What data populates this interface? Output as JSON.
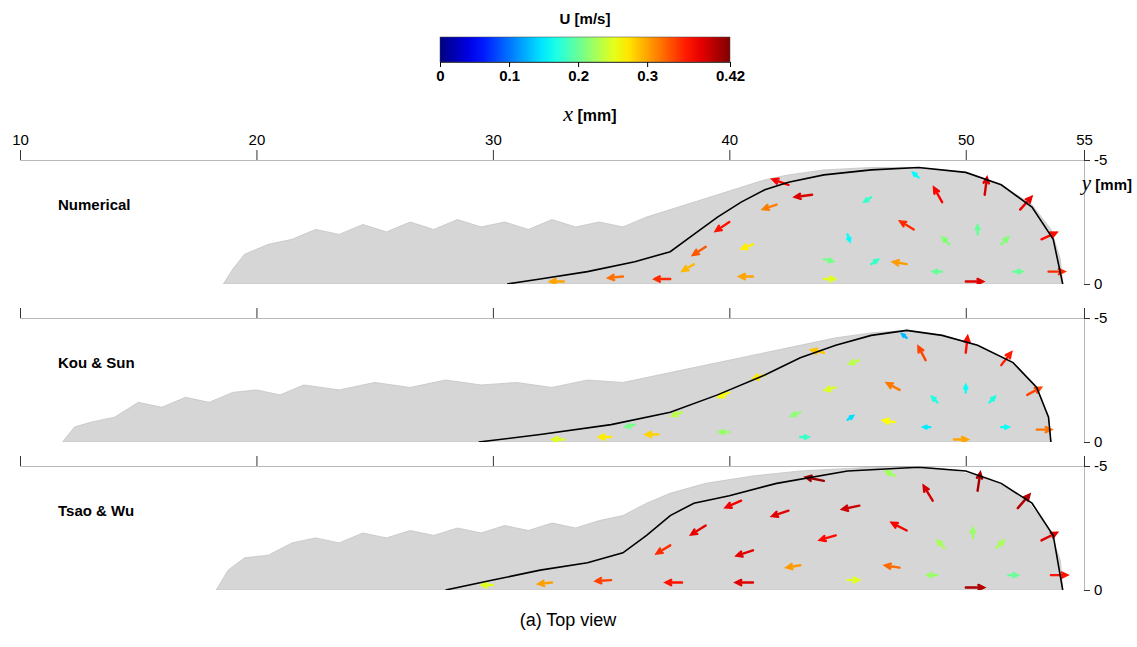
{
  "chart_data": [
    {
      "type": "vector_field",
      "title": "Numerical",
      "x_label": "x [mm]",
      "y_label": "y [mm]",
      "xlim": [
        10,
        55
      ],
      "xticks": [
        10,
        20,
        30,
        40,
        50,
        55
      ],
      "ylim": [
        -5,
        0
      ],
      "yticks": [
        -5,
        0
      ],
      "colorbar": {
        "title": "U [m/s]",
        "range": [
          0,
          0.42
        ],
        "ticks": [
          0,
          0.1,
          0.2,
          0.3,
          0.42
        ]
      },
      "bead": {
        "x": [
          18.6,
          19,
          19.5,
          20.5,
          21.5,
          22.5,
          23.5,
          24.5,
          25.5,
          26.5,
          27.5,
          28.5,
          29.5,
          30.5,
          31.5,
          32.5,
          33.5,
          34.5,
          35.5,
          36.5,
          37.5,
          38.5,
          39.5,
          40.5,
          41.5,
          42.5,
          44,
          46,
          48,
          50,
          51.5,
          52.8,
          53.6,
          54,
          54.1
        ],
        "y": [
          0,
          -0.6,
          -1.2,
          -1.6,
          -1.8,
          -2.2,
          -2.0,
          -2.4,
          -2.1,
          -2.5,
          -2.2,
          -2.6,
          -2.3,
          -2.5,
          -2.2,
          -2.6,
          -2.3,
          -2.5,
          -2.3,
          -2.7,
          -3.0,
          -3.3,
          -3.6,
          -3.9,
          -4.2,
          -4.4,
          -4.6,
          -4.7,
          -4.7,
          -4.5,
          -4.0,
          -3.2,
          -2.2,
          -1.0,
          0
        ]
      },
      "boundary": {
        "x": [
          30.6,
          32,
          34,
          36,
          37.5,
          38.5,
          39.5,
          40.5,
          41.5,
          42.5,
          44,
          46,
          48,
          50,
          51.5,
          52.8,
          53.7,
          54.1
        ],
        "y": [
          0,
          -0.2,
          -0.5,
          -0.9,
          -1.3,
          -2.0,
          -2.7,
          -3.3,
          -3.8,
          -4.1,
          -4.4,
          -4.6,
          -4.7,
          -4.5,
          -4.0,
          -3.1,
          -1.8,
          0
        ]
      },
      "vectors": {
        "x": [
          53.5,
          53.2,
          52.3,
          50.8,
          49,
          47.8,
          47.5,
          52,
          51.5,
          50.5,
          49.3,
          49,
          50,
          48,
          46,
          45,
          44,
          46,
          42.5,
          43.5,
          42,
          40,
          39,
          41,
          38.5,
          33,
          35.5,
          37.5,
          41,
          44
        ],
        "y": [
          -0.5,
          -1.8,
          -3.0,
          -3.6,
          -3.3,
          -2.2,
          -0.8,
          -0.5,
          -1.6,
          -2.0,
          -1.6,
          -0.5,
          -0.1,
          -4.3,
          -3.5,
          -2,
          -1,
          -0.8,
          -4.0,
          -3.6,
          -3.2,
          -2.5,
          -1.5,
          -1.6,
          -0.8,
          -0.1,
          -0.3,
          -0.2,
          -0.3,
          -0.2
        ],
        "u": [
          0.35,
          0.33,
          0.25,
          0.05,
          -0.18,
          -0.3,
          -0.3,
          0.2,
          0.15,
          0,
          -0.15,
          -0.2,
          0.38,
          -0.12,
          -0.15,
          0.05,
          0.2,
          0.15,
          -0.35,
          -0.38,
          -0.3,
          -0.3,
          -0.28,
          -0.25,
          -0.25,
          -0.3,
          -0.32,
          -0.35,
          -0.3,
          0.25
        ],
        "v": [
          0,
          -0.15,
          -0.28,
          -0.38,
          -0.32,
          -0.18,
          -0.05,
          0,
          -0.15,
          -0.2,
          -0.15,
          0,
          0,
          -0.1,
          0.1,
          0.15,
          0.05,
          -0.1,
          -0.12,
          0.05,
          0.1,
          0.2,
          0.18,
          0.1,
          0.15,
          0,
          0.03,
          0,
          0,
          0
        ]
      }
    },
    {
      "type": "vector_field",
      "title": "Kou & Sun",
      "tick_labels": "y",
      "xlim": [
        10,
        55
      ],
      "xticks": [
        10,
        20,
        30,
        40,
        50,
        55
      ],
      "ylim": [
        -5,
        0
      ],
      "yticks": [
        -5,
        0
      ],
      "bead": {
        "x": [
          11.8,
          12.3,
          13,
          14,
          15,
          16,
          17,
          18,
          19,
          20,
          21,
          22,
          23.5,
          25,
          26.5,
          28,
          29.5,
          31,
          32.5,
          34,
          35.5,
          37,
          38.5,
          40,
          41.5,
          43,
          44.5,
          46,
          47.5,
          49,
          50.5,
          52,
          53,
          53.5,
          53.6
        ],
        "y": [
          0,
          -0.6,
          -0.8,
          -1.0,
          -1.6,
          -1.4,
          -1.8,
          -1.6,
          -2.0,
          -2.1,
          -1.9,
          -2.3,
          -2.1,
          -2.4,
          -2.2,
          -2.5,
          -2.3,
          -2.4,
          -2.2,
          -2.5,
          -2.4,
          -2.7,
          -3.0,
          -3.3,
          -3.6,
          -3.9,
          -4.2,
          -4.4,
          -4.5,
          -4.3,
          -3.9,
          -3.2,
          -2.2,
          -1.0,
          0
        ]
      },
      "boundary": {
        "x": [
          29.4,
          32,
          35,
          37.5,
          39.5,
          41.5,
          43,
          44.5,
          46,
          47.5,
          49,
          50.5,
          52,
          53,
          53.5,
          53.6
        ],
        "y": [
          0,
          -0.3,
          -0.7,
          -1.2,
          -1.9,
          -2.7,
          -3.4,
          -3.9,
          -4.3,
          -4.5,
          -4.3,
          -3.9,
          -3.2,
          -2.2,
          -1.0,
          0
        ]
      },
      "vectors": {
        "x": [
          53,
          52.6,
          51.5,
          50,
          48.3,
          47.2,
          47,
          51.5,
          51,
          50,
          48.8,
          48.5,
          49.5,
          47.5,
          45.5,
          44.5,
          43,
          45,
          44,
          41.5,
          40,
          38,
          36,
          33,
          35,
          37,
          40,
          43
        ],
        "y": [
          -0.5,
          -1.9,
          -3.1,
          -3.6,
          -3.3,
          -2.1,
          -0.8,
          -0.6,
          -1.6,
          -2.0,
          -1.6,
          -0.6,
          -0.1,
          -4.2,
          -3.3,
          -2.2,
          -1.2,
          -0.9,
          -3.6,
          -2.7,
          -2.0,
          -1.2,
          -0.7,
          -0.1,
          -0.2,
          -0.3,
          -0.4,
          -0.2
        ],
        "u": [
          0.32,
          0.3,
          0.22,
          0.04,
          -0.16,
          -0.28,
          -0.26,
          0.16,
          0.12,
          0,
          -0.12,
          -0.15,
          0.3,
          -0.1,
          -0.22,
          -0.24,
          -0.2,
          0.12,
          -0.28,
          -0.26,
          -0.24,
          -0.22,
          -0.2,
          -0.25,
          -0.27,
          -0.28,
          -0.22,
          0.18
        ],
        "v": [
          0,
          -0.16,
          -0.28,
          -0.36,
          -0.3,
          -0.15,
          -0.04,
          0,
          -0.12,
          -0.16,
          -0.12,
          0,
          0,
          -0.08,
          0.08,
          0.06,
          0.08,
          -0.08,
          -0.06,
          0.08,
          0.1,
          0.08,
          0.05,
          0,
          0,
          0,
          0,
          0
        ]
      }
    },
    {
      "type": "vector_field",
      "title": "Tsao & Wu",
      "tick_labels": "y",
      "xlim": [
        10,
        55
      ],
      "xticks": [
        10,
        20,
        30,
        40,
        50,
        55
      ],
      "ylim": [
        -5,
        0
      ],
      "yticks": [
        -5,
        0
      ],
      "bead": {
        "x": [
          18.3,
          18.8,
          19.5,
          20.5,
          21.5,
          22.5,
          23.5,
          24.5,
          25.5,
          26.5,
          27.5,
          28.5,
          29.5,
          30.5,
          31.5,
          32.5,
          33.5,
          34.5,
          35.5,
          36.5,
          37.5,
          39,
          41,
          43,
          45,
          47,
          49,
          51,
          52.5,
          53.5,
          54,
          54.1
        ],
        "y": [
          0,
          -0.8,
          -1.3,
          -1.4,
          -1.9,
          -2.1,
          -1.9,
          -2.3,
          -2.1,
          -2.4,
          -2.2,
          -2.5,
          -2.3,
          -2.6,
          -2.4,
          -2.7,
          -2.5,
          -2.8,
          -3.0,
          -3.5,
          -3.9,
          -4.3,
          -4.6,
          -4.8,
          -4.9,
          -5.0,
          -4.9,
          -4.5,
          -3.7,
          -2.5,
          -1.2,
          0
        ]
      },
      "boundary": {
        "x": [
          28,
          30,
          32,
          34,
          35.5,
          36.5,
          37.5,
          38.5,
          40,
          42,
          45,
          48,
          50,
          51.5,
          52.8,
          53.7,
          54.1
        ],
        "y": [
          0,
          -0.4,
          -0.8,
          -1.1,
          -1.5,
          -2.2,
          -3.0,
          -3.5,
          -3.8,
          -4.3,
          -4.8,
          -4.95,
          -4.8,
          -4.3,
          -3.5,
          -2.2,
          0
        ]
      },
      "vectors": {
        "x": [
          53.6,
          53.2,
          52.2,
          50.5,
          48.6,
          47.5,
          47.2,
          51.8,
          51.3,
          50.3,
          49.1,
          48.8,
          50,
          47,
          44,
          45.5,
          44.5,
          42.5,
          40.5,
          39,
          37.5,
          41,
          43,
          30,
          32.5,
          35,
          38,
          41,
          45
        ],
        "y": [
          -0.6,
          -2.0,
          -3.3,
          -4.0,
          -3.6,
          -2.4,
          -0.9,
          -0.6,
          -1.7,
          -2.1,
          -1.7,
          -0.6,
          -0.1,
          -4.6,
          -4.4,
          -3.4,
          -2.2,
          -3.2,
          -3.6,
          -2.6,
          -1.8,
          -1.6,
          -1.0,
          -0.2,
          -0.3,
          -0.4,
          -0.3,
          -0.3,
          -0.4
        ],
        "u": [
          0.36,
          0.34,
          0.26,
          0.06,
          -0.2,
          -0.33,
          -0.32,
          0.2,
          0.16,
          0,
          -0.16,
          -0.22,
          0.4,
          -0.2,
          -0.4,
          -0.38,
          -0.35,
          -0.36,
          -0.34,
          -0.32,
          -0.3,
          -0.36,
          -0.3,
          -0.25,
          -0.3,
          -0.34,
          -0.36,
          -0.38,
          0.25
        ],
        "v": [
          0,
          -0.17,
          -0.3,
          -0.4,
          -0.33,
          -0.17,
          -0.05,
          0,
          -0.16,
          -0.22,
          -0.16,
          0,
          0,
          -0.1,
          -0.08,
          0.08,
          0.1,
          0.12,
          0.15,
          0.2,
          0.18,
          0.12,
          0.05,
          0,
          0.03,
          0.02,
          0,
          0,
          0
        ]
      }
    }
  ],
  "caption": "(a) Top view"
}
